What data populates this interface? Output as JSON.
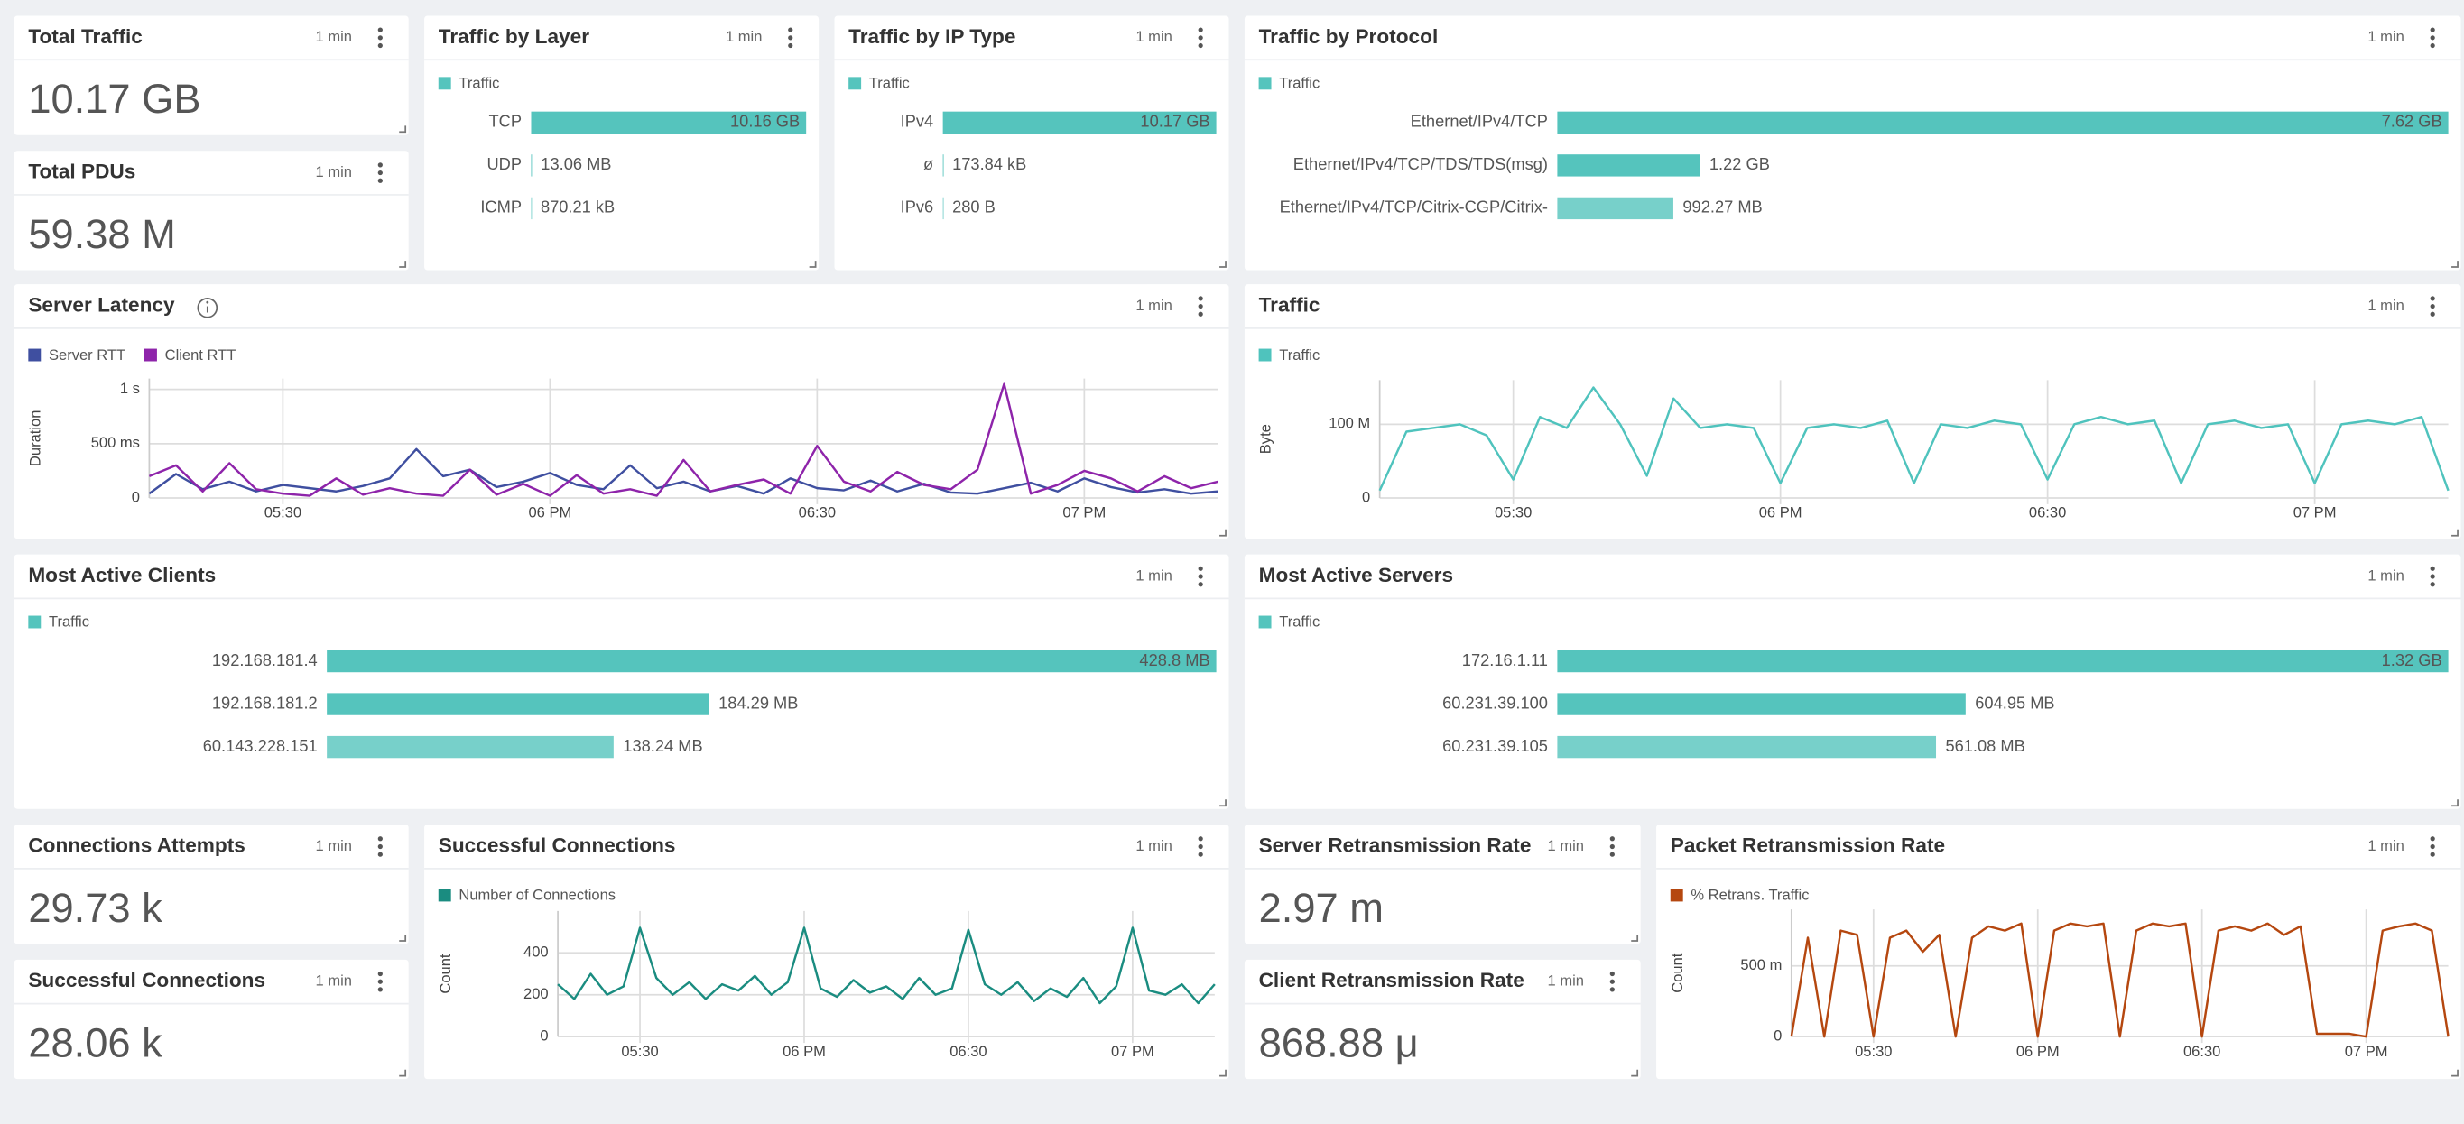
{
  "panels": [
    {
      "title": "Total Traffic",
      "interval": "1 min",
      "type": "stat",
      "value": "10.17 GB"
    },
    {
      "title": "Total PDUs",
      "interval": "1 min",
      "type": "stat",
      "value": "59.38 M"
    },
    {
      "title": "Traffic by Layer",
      "interval": "1 min",
      "type": "bar",
      "legend": "Traffic",
      "color": "#55c4bd",
      "categories": [
        "TCP",
        "UDP",
        "ICMP"
      ],
      "values": [
        10160,
        13.06,
        0.87021
      ],
      "value_labels": [
        "10.16 GB",
        "13.06 MB",
        "870.21 kB"
      ],
      "xlim": [
        0,
        10160
      ]
    },
    {
      "title": "Traffic by IP Type",
      "interval": "1 min",
      "type": "bar",
      "legend": "Traffic",
      "color": "#55c4bd",
      "categories": [
        "IPv4",
        "ø",
        "IPv6"
      ],
      "values": [
        10170,
        0.17384,
        0.00028
      ],
      "value_labels": [
        "10.17 GB",
        "173.84 kB",
        "280 B"
      ],
      "xlim": [
        0,
        10170
      ]
    },
    {
      "title": "Traffic by Protocol",
      "interval": "1 min",
      "type": "bar",
      "legend": "Traffic",
      "color": "#55c4bd",
      "categories": [
        "Ethernet/IPv4/TCP",
        "Ethernet/IPv4/TCP/TDS/TDS(msg)",
        "Ethernet/IPv4/TCP/Citrix-CGP/Citrix-"
      ],
      "values": [
        7620,
        1220,
        992.27
      ],
      "value_labels": [
        "7.62 GB",
        "1.22 GB",
        "992.27 MB"
      ],
      "xlim": [
        0,
        7620
      ]
    },
    {
      "title": "Server Latency",
      "interval": "1 min",
      "type": "line",
      "ylabel": "Duration",
      "x": [
        "17:15",
        "17:18",
        "17:21",
        "17:24",
        "17:27",
        "17:30",
        "17:33",
        "17:36",
        "17:39",
        "17:42",
        "17:45",
        "17:48",
        "17:51",
        "17:54",
        "17:57",
        "18:00",
        "18:03",
        "18:06",
        "18:09",
        "18:12",
        "18:15",
        "18:18",
        "18:21",
        "18:24",
        "18:27",
        "18:30",
        "18:33",
        "18:36",
        "18:39",
        "18:42",
        "18:45",
        "18:48",
        "18:51",
        "18:54",
        "18:57",
        "19:00",
        "19:03",
        "19:06",
        "19:09",
        "19:12",
        "19:15"
      ],
      "xlim": [
        "17:15",
        "19:15"
      ],
      "xticks": [
        {
          "value": "17:30",
          "label": "05:30"
        },
        {
          "value": "18:00",
          "label": "06 PM"
        },
        {
          "value": "18:30",
          "label": "06:30"
        },
        {
          "value": "19:00",
          "label": "07 PM"
        }
      ],
      "ylim": [
        0,
        1100
      ],
      "yticks": [
        0,
        {
          "value": 500,
          "label": "500 ms"
        },
        {
          "value": 1000,
          "label": "1 s"
        }
      ],
      "series": [
        {
          "name": "Server RTT",
          "color": "#3f4fa0",
          "values": [
            40,
            220,
            80,
            150,
            60,
            120,
            90,
            60,
            110,
            180,
            450,
            200,
            260,
            100,
            150,
            230,
            120,
            80,
            300,
            90,
            150,
            60,
            110,
            40,
            180,
            90,
            70,
            160,
            60,
            130,
            50,
            40,
            90,
            140,
            60,
            180,
            100,
            50,
            80,
            40,
            60
          ]
        },
        {
          "name": "Client RTT",
          "color": "#8e24aa",
          "values": [
            200,
            300,
            60,
            320,
            80,
            40,
            20,
            180,
            30,
            90,
            40,
            20,
            260,
            30,
            130,
            20,
            210,
            40,
            80,
            20,
            350,
            60,
            120,
            170,
            40,
            480,
            150,
            60,
            240,
            120,
            80,
            260,
            1050,
            40,
            120,
            250,
            180,
            60,
            200,
            90,
            150
          ]
        }
      ]
    },
    {
      "title": "Traffic",
      "interval": "1 min",
      "type": "line",
      "ylabel": "Byte",
      "x": [
        "17:15",
        "17:18",
        "17:21",
        "17:24",
        "17:27",
        "17:30",
        "17:33",
        "17:36",
        "17:39",
        "17:42",
        "17:45",
        "17:48",
        "17:51",
        "17:54",
        "17:57",
        "18:00",
        "18:03",
        "18:06",
        "18:09",
        "18:12",
        "18:15",
        "18:18",
        "18:21",
        "18:24",
        "18:27",
        "18:30",
        "18:33",
        "18:36",
        "18:39",
        "18:42",
        "18:45",
        "18:48",
        "18:51",
        "18:54",
        "18:57",
        "19:00",
        "19:03",
        "19:06",
        "19:09",
        "19:12",
        "19:15"
      ],
      "xlim": [
        "17:15",
        "19:15"
      ],
      "xticks": [
        {
          "value": "17:30",
          "label": "05:30"
        },
        {
          "value": "18:00",
          "label": "06 PM"
        },
        {
          "value": "18:30",
          "label": "06:30"
        },
        {
          "value": "19:00",
          "label": "07 PM"
        }
      ],
      "ylim": [
        0,
        160
      ],
      "yticks": [
        0,
        {
          "value": 100,
          "label": "100 M"
        }
      ],
      "series": [
        {
          "name": "Traffic",
          "color": "#4fc3bd",
          "values": [
            10,
            90,
            95,
            100,
            85,
            25,
            110,
            95,
            150,
            100,
            30,
            135,
            95,
            100,
            95,
            20,
            95,
            100,
            95,
            105,
            20,
            100,
            95,
            105,
            100,
            25,
            100,
            110,
            100,
            105,
            20,
            100,
            105,
            95,
            100,
            20,
            100,
            105,
            100,
            110,
            10
          ]
        }
      ]
    },
    {
      "title": "Most Active Clients",
      "interval": "1 min",
      "type": "bar",
      "legend": "Traffic",
      "color": "#55c4bd",
      "categories": [
        "192.168.181.4",
        "192.168.181.2",
        "60.143.228.151"
      ],
      "values": [
        428.8,
        184.29,
        138.24
      ],
      "value_labels": [
        "428.8 MB",
        "184.29 MB",
        "138.24 MB"
      ],
      "xlim": [
        0,
        428.8
      ]
    },
    {
      "title": "Most Active Servers",
      "interval": "1 min",
      "type": "bar",
      "legend": "Traffic",
      "color": "#55c4bd",
      "categories": [
        "172.16.1.11",
        "60.231.39.100",
        "60.231.39.105"
      ],
      "values": [
        1320,
        604.95,
        561.08
      ],
      "value_labels": [
        "1.32 GB",
        "604.95 MB",
        "561.08 MB"
      ],
      "xlim": [
        0,
        1320
      ]
    },
    {
      "title": "Connections Attempts",
      "interval": "1 min",
      "type": "stat",
      "value": "29.73 k"
    },
    {
      "title": "Successful Connections",
      "interval": "1 min",
      "type": "stat",
      "value": "28.06 k"
    },
    {
      "title": "Successful Connections",
      "interval": "1 min",
      "type": "line",
      "ylabel": "Count",
      "x": [
        "17:15",
        "17:18",
        "17:21",
        "17:24",
        "17:27",
        "17:30",
        "17:33",
        "17:36",
        "17:39",
        "17:42",
        "17:45",
        "17:48",
        "17:51",
        "17:54",
        "17:57",
        "18:00",
        "18:03",
        "18:06",
        "18:09",
        "18:12",
        "18:15",
        "18:18",
        "18:21",
        "18:24",
        "18:27",
        "18:30",
        "18:33",
        "18:36",
        "18:39",
        "18:42",
        "18:45",
        "18:48",
        "18:51",
        "18:54",
        "18:57",
        "19:00",
        "19:03",
        "19:06",
        "19:09",
        "19:12",
        "19:15"
      ],
      "xlim": [
        "17:15",
        "19:15"
      ],
      "xticks": [
        {
          "value": "17:30",
          "label": "05:30"
        },
        {
          "value": "18:00",
          "label": "06 PM"
        },
        {
          "value": "18:30",
          "label": "06:30"
        },
        {
          "value": "19:00",
          "label": "07 PM"
        }
      ],
      "ylim": [
        0,
        600
      ],
      "yticks": [
        0,
        200,
        400
      ],
      "series": [
        {
          "name": "Number of Connections",
          "color": "#1a8c80",
          "values": [
            250,
            180,
            300,
            200,
            240,
            520,
            280,
            200,
            260,
            180,
            250,
            220,
            290,
            200,
            260,
            520,
            230,
            190,
            270,
            210,
            240,
            180,
            280,
            200,
            230,
            510,
            250,
            200,
            260,
            170,
            230,
            190,
            280,
            160,
            240,
            520,
            220,
            200,
            250,
            160,
            250
          ]
        }
      ]
    },
    {
      "title": "Server Retransmission Rate",
      "interval": "1 min",
      "type": "stat",
      "value": "2.97 m"
    },
    {
      "title": "Client Retransmission Rate",
      "interval": "1 min",
      "type": "stat",
      "value": "868.88 μ"
    },
    {
      "title": "Packet Retransmission Rate",
      "interval": "1 min",
      "type": "line",
      "ylabel": "Count",
      "x": [
        "17:15",
        "17:18",
        "17:21",
        "17:24",
        "17:27",
        "17:30",
        "17:33",
        "17:36",
        "17:39",
        "17:42",
        "17:45",
        "17:48",
        "17:51",
        "17:54",
        "17:57",
        "18:00",
        "18:03",
        "18:06",
        "18:09",
        "18:12",
        "18:15",
        "18:18",
        "18:21",
        "18:24",
        "18:27",
        "18:30",
        "18:33",
        "18:36",
        "18:39",
        "18:42",
        "18:45",
        "18:48",
        "18:51",
        "18:54",
        "18:57",
        "19:00",
        "19:03",
        "19:06",
        "19:09",
        "19:12",
        "19:15"
      ],
      "xlim": [
        "17:15",
        "19:15"
      ],
      "xticks": [
        {
          "value": "17:30",
          "label": "05:30"
        },
        {
          "value": "18:00",
          "label": "06 PM"
        },
        {
          "value": "18:30",
          "label": "06:30"
        },
        {
          "value": "19:00",
          "label": "07 PM"
        }
      ],
      "ylim": [
        0,
        0.9
      ],
      "yticks": [
        0,
        {
          "value": 0.5,
          "label": "500 m"
        }
      ],
      "series": [
        {
          "name": "% Retrans. Traffic",
          "color": "#b5470f",
          "values": [
            0,
            0.7,
            0,
            0.75,
            0.72,
            0,
            0.7,
            0.75,
            0.6,
            0.72,
            0,
            0.7,
            0.78,
            0.75,
            0.8,
            0,
            0.75,
            0.8,
            0.78,
            0.8,
            0,
            0.75,
            0.8,
            0.78,
            0.8,
            0,
            0.75,
            0.78,
            0.75,
            0.8,
            0.72,
            0.78,
            0.02,
            0.02,
            0.02,
            0,
            0.75,
            0.78,
            0.8,
            0.75,
            0
          ]
        }
      ]
    }
  ]
}
